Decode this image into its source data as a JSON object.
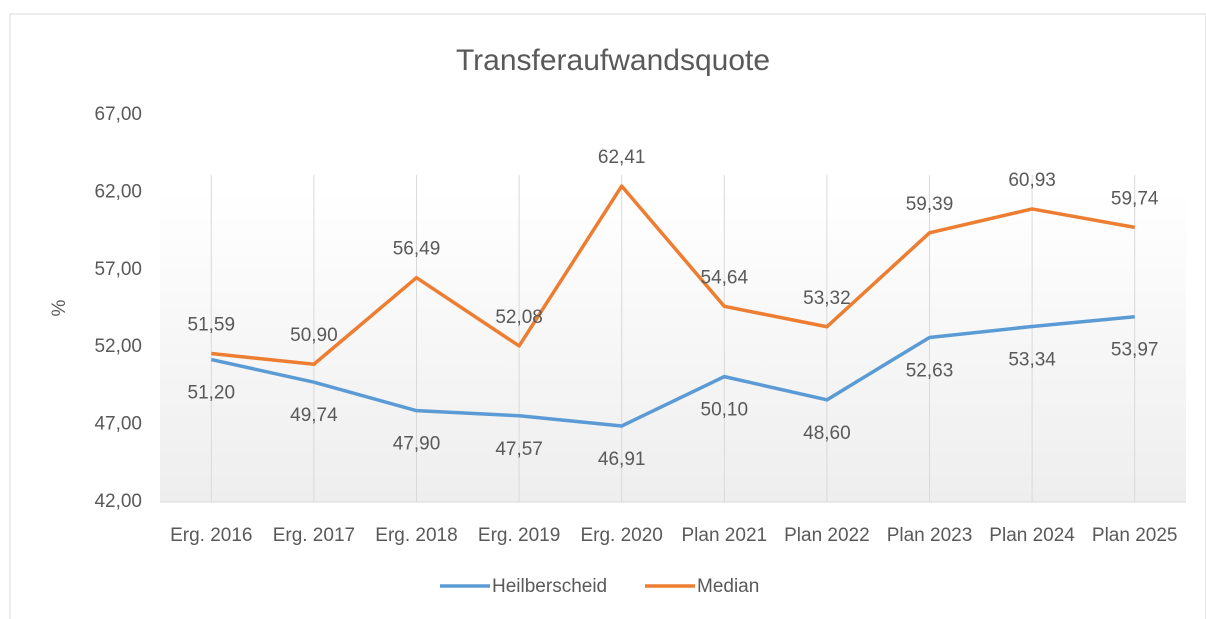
{
  "chart_data": {
    "type": "line",
    "title": "Transferaufwandsquote",
    "y_label": "%",
    "categories": [
      "Erg. 2016",
      "Erg. 2017",
      "Erg. 2018",
      "Erg. 2019",
      "Erg. 2020",
      "Plan 2021",
      "Plan 2022",
      "Plan 2023",
      "Plan 2024",
      "Plan 2025"
    ],
    "series": [
      {
        "name": "Heilberscheid",
        "color": "#5b9bd5",
        "values": [
          51.2,
          49.74,
          47.9,
          47.57,
          46.91,
          50.1,
          48.6,
          52.63,
          53.34,
          53.97
        ],
        "value_labels": [
          "51,20",
          "49,74",
          "47,90",
          "47,57",
          "46,91",
          "50,10",
          "48,60",
          "52,63",
          "53,34",
          "53,97"
        ]
      },
      {
        "name": "Median",
        "color": "#ed7d31",
        "values": [
          51.59,
          50.9,
          56.49,
          52.08,
          62.41,
          54.64,
          53.32,
          59.39,
          60.93,
          59.74
        ],
        "value_labels": [
          "51,59",
          "50,90",
          "56,49",
          "52,08",
          "62,41",
          "54,64",
          "53,32",
          "59,39",
          "60,93",
          "59,74"
        ]
      }
    ],
    "ylim": [
      42,
      67
    ],
    "yticks": [
      {
        "value": 42,
        "label": "42,00"
      },
      {
        "value": 47,
        "label": "47,00"
      },
      {
        "value": 52,
        "label": "52,00"
      },
      {
        "value": 57,
        "label": "57,00"
      },
      {
        "value": 62,
        "label": "62,00"
      },
      {
        "value": 67,
        "label": "67,00"
      }
    ],
    "legend": "bottom"
  }
}
